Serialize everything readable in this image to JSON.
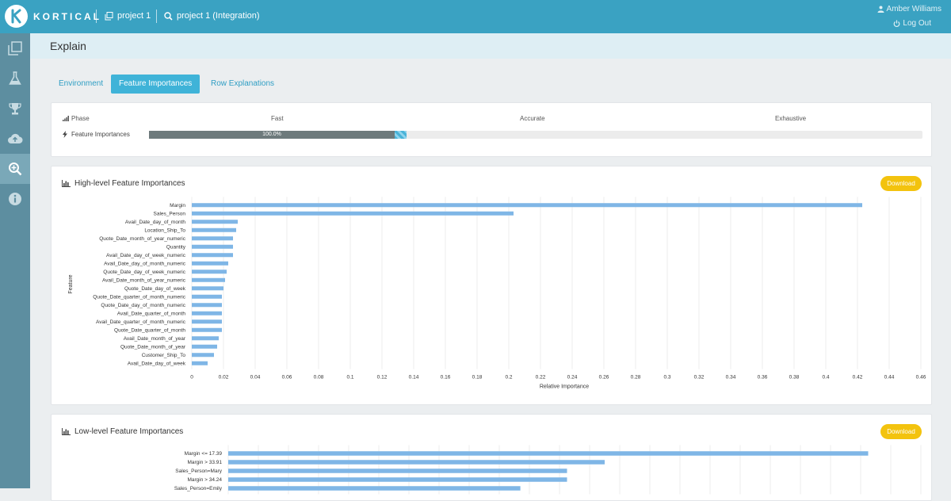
{
  "topbar": {
    "brand": "KORTICAL",
    "crumb1": "project 1",
    "crumb2": "project 1 (Integration)",
    "user": "Amber Williams",
    "logout": "Log Out"
  },
  "sidebar": {
    "items": [
      {
        "icon": "projects-icon",
        "active": false
      },
      {
        "icon": "flask-icon",
        "active": false
      },
      {
        "icon": "trophy-icon",
        "active": false
      },
      {
        "icon": "cloud-upload-icon",
        "active": false
      },
      {
        "icon": "search-plus-icon",
        "active": true
      },
      {
        "icon": "info-icon",
        "active": false
      }
    ]
  },
  "page": {
    "title": "Explain"
  },
  "tabs": [
    {
      "label": "Environment",
      "active": false
    },
    {
      "label": "Feature Importances",
      "active": true
    },
    {
      "label": "Row Explanations",
      "active": false
    }
  ],
  "phase": {
    "header": "Phase",
    "stages": [
      "Fast",
      "Accurate",
      "Exhaustive"
    ],
    "row_label": "Feature Importances",
    "progress_text": "100.0%",
    "progress_fraction": 0.333
  },
  "colors": {
    "accent": "#3aa2c2",
    "bar": "#7fb6e6",
    "download": "#f3c30e",
    "progress": "#6d7a7c"
  },
  "high_level": {
    "title": "High-level Feature Importances",
    "download": "Download",
    "chart_data": {
      "type": "bar",
      "orientation": "horizontal",
      "xlabel": "Relative Importance",
      "ylabel": "Feature",
      "xlim": [
        0,
        0.46
      ],
      "xticks": [
        "0",
        "0.02",
        "0.04",
        "0.06",
        "0.08",
        "0.1",
        "0.12",
        "0.14",
        "0.16",
        "0.18",
        "0.2",
        "0.22",
        "0.24",
        "0.26",
        "0.28",
        "0.3",
        "0.32",
        "0.34",
        "0.36",
        "0.38",
        "0.4",
        "0.42",
        "0.44",
        "0.46"
      ],
      "grid": true,
      "categories": [
        "Margin",
        "Sales_Person",
        "Avail_Date_day_of_month",
        "Location_Ship_To",
        "Quote_Date_month_of_year_numeric",
        "Quantity",
        "Avail_Date_day_of_week_numeric",
        "Avail_Date_day_of_month_numeric",
        "Quote_Date_day_of_week_numeric",
        "Avail_Date_month_of_year_numeric",
        "Quote_Date_day_of_week",
        "Quote_Date_quarter_of_month_numeric",
        "Quote_Date_day_of_month_numeric",
        "Avail_Date_quarter_of_month",
        "Avail_Date_quarter_of_month_numeric",
        "Quote_Date_quarter_of_month",
        "Avail_Date_month_of_year",
        "Quote_Date_month_of_year",
        "Customer_Ship_To",
        "Avail_Date_day_of_week"
      ],
      "values": [
        0.423,
        0.203,
        0.029,
        0.028,
        0.026,
        0.026,
        0.026,
        0.023,
        0.022,
        0.021,
        0.02,
        0.019,
        0.019,
        0.019,
        0.019,
        0.019,
        0.017,
        0.016,
        0.014,
        0.01
      ]
    }
  },
  "low_level": {
    "title": "Low-level Feature Importances",
    "download": "Download",
    "chart_data": {
      "type": "bar",
      "orientation": "horizontal",
      "xlim": [
        0,
        0.46
      ],
      "grid": true,
      "categories": [
        "Margin <= 17.39",
        "Margin > 33.91",
        "Sales_Person=Mary",
        "Margin > 34.24",
        "Sales_Person=Emily"
      ],
      "values": [
        0.425,
        0.25,
        0.225,
        0.225,
        0.194
      ]
    }
  }
}
